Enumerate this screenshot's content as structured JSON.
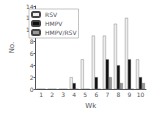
{
  "chart_data": {
    "type": "bar",
    "xlabel": "Wk",
    "ylabel": "No.",
    "categories": [
      "1",
      "2",
      "3",
      "4",
      "5",
      "6",
      "7",
      "8",
      "9",
      "10"
    ],
    "series": [
      {
        "name": "RSV",
        "color": "#eeeeee",
        "values": [
          0,
          0,
          0,
          2,
          5,
          9,
          9,
          11,
          12,
          5
        ]
      },
      {
        "name": "HMPV",
        "color": "#111111",
        "values": [
          0,
          0,
          0,
          1,
          0,
          2,
          5,
          4,
          5,
          2
        ]
      },
      {
        "name": "HMPV/RSV",
        "color": "#999999",
        "values": [
          0,
          0,
          0,
          0,
          0,
          0,
          2,
          1,
          0,
          1
        ]
      }
    ],
    "ylim": [
      0,
      14
    ],
    "yticks": [
      0,
      2,
      4,
      6,
      8,
      10,
      12,
      14
    ],
    "grid": false,
    "legend": "upper left"
  }
}
